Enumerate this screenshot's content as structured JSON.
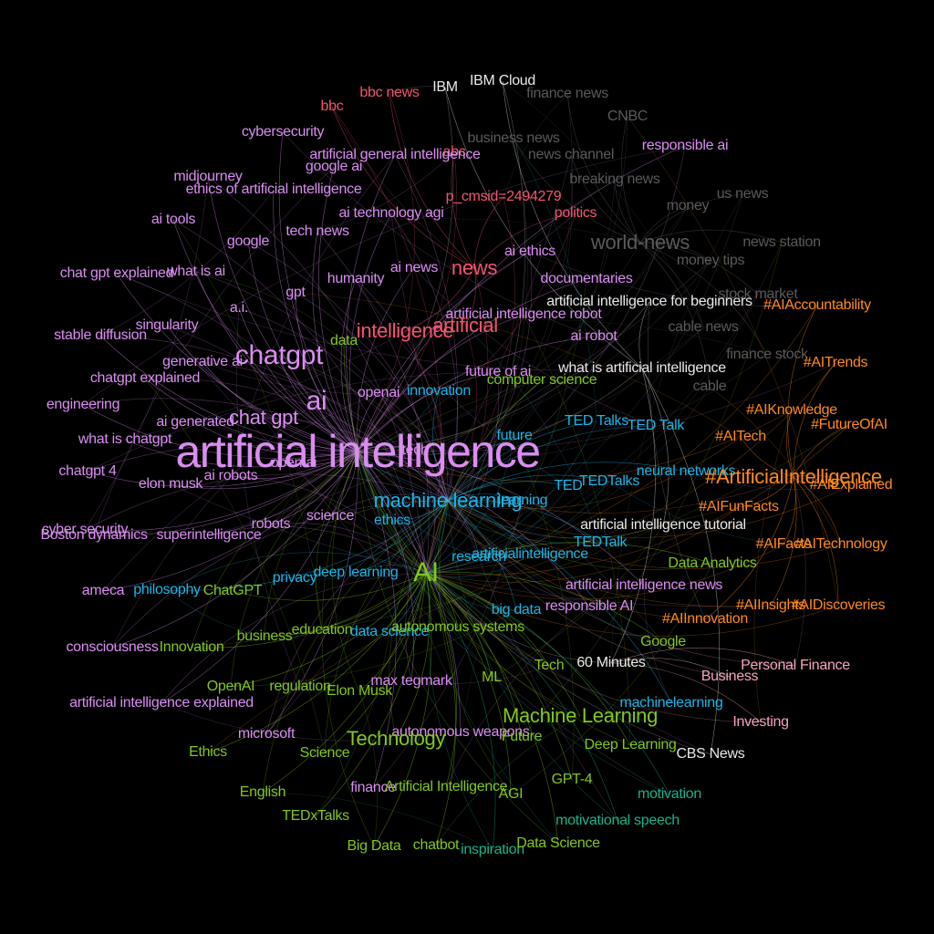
{
  "colors": {
    "background": "#000000",
    "violet": "#d98ef0",
    "red": "#f2566f",
    "cyan": "#19b6e8",
    "green": "#82c71e",
    "orange": "#ff8a1c",
    "gray": "#5a5a5a",
    "white": "#e8e8e8",
    "teal": "#17b38e",
    "pink": "#f3a5ba"
  },
  "nodes": [
    {
      "label": "IBM",
      "color": "white",
      "size": "s"
    },
    {
      "label": "IBM Cloud",
      "color": "white",
      "size": "s"
    },
    {
      "label": "finance news",
      "color": "gray",
      "size": "s"
    },
    {
      "label": "bbc news",
      "color": "red",
      "size": "s"
    },
    {
      "label": "bbc",
      "color": "red",
      "size": "s"
    },
    {
      "label": "CNBC",
      "color": "gray",
      "size": "s"
    },
    {
      "label": "cybersecurity",
      "color": "violet",
      "size": "s"
    },
    {
      "label": "business news",
      "color": "gray",
      "size": "s"
    },
    {
      "label": "responsible ai",
      "color": "violet",
      "size": "s"
    },
    {
      "label": "abc",
      "color": "red",
      "size": "s"
    },
    {
      "label": "artificial general intelligence",
      "color": "violet",
      "size": "s"
    },
    {
      "label": "news channel",
      "color": "gray",
      "size": "s"
    },
    {
      "label": "google ai",
      "color": "violet",
      "size": "s"
    },
    {
      "label": "midjourney",
      "color": "violet",
      "size": "s"
    },
    {
      "label": "breaking news",
      "color": "gray",
      "size": "s"
    },
    {
      "label": "ethics of artificial intelligence",
      "color": "violet",
      "size": "s"
    },
    {
      "label": "us news",
      "color": "gray",
      "size": "s"
    },
    {
      "label": "p_cmsid=2494279",
      "color": "red",
      "size": "s"
    },
    {
      "label": "money",
      "color": "gray",
      "size": "s"
    },
    {
      "label": "ai tools",
      "color": "violet",
      "size": "s"
    },
    {
      "label": "ai technology agi",
      "color": "violet",
      "size": "s"
    },
    {
      "label": "politics",
      "color": "red",
      "size": "s"
    },
    {
      "label": "tech news",
      "color": "violet",
      "size": "s"
    },
    {
      "label": "google",
      "color": "violet",
      "size": "s"
    },
    {
      "label": "world-news",
      "color": "gray",
      "size": "m"
    },
    {
      "label": "news station",
      "color": "gray",
      "size": "s"
    },
    {
      "label": "ai ethics",
      "color": "violet",
      "size": "s"
    },
    {
      "label": "money tips",
      "color": "gray",
      "size": "s"
    },
    {
      "label": "chat gpt explained",
      "color": "violet",
      "size": "s"
    },
    {
      "label": "what is ai",
      "color": "violet",
      "size": "s"
    },
    {
      "label": "ai news",
      "color": "violet",
      "size": "s"
    },
    {
      "label": "news",
      "color": "red",
      "size": "m"
    },
    {
      "label": "humanity",
      "color": "violet",
      "size": "s"
    },
    {
      "label": "documentaries",
      "color": "violet",
      "size": "s"
    },
    {
      "label": "stock market",
      "color": "gray",
      "size": "s"
    },
    {
      "label": "gpt",
      "color": "violet",
      "size": "s"
    },
    {
      "label": "artificial intelligence for beginners",
      "color": "white",
      "size": "s"
    },
    {
      "label": "#AIAccountability",
      "color": "orange",
      "size": "s"
    },
    {
      "label": "a.i.",
      "color": "violet",
      "size": "s"
    },
    {
      "label": "artificial intelligence robot",
      "color": "violet",
      "size": "s"
    },
    {
      "label": "singularity",
      "color": "violet",
      "size": "s"
    },
    {
      "label": "artificial",
      "color": "red",
      "size": "m"
    },
    {
      "label": "cable news",
      "color": "gray",
      "size": "s"
    },
    {
      "label": "intelligence",
      "color": "red",
      "size": "m"
    },
    {
      "label": "stable diffusion",
      "color": "violet",
      "size": "s"
    },
    {
      "label": "ai robot",
      "color": "violet",
      "size": "s"
    },
    {
      "label": "data",
      "color": "green",
      "size": "s"
    },
    {
      "label": "chatgpt",
      "color": "violet",
      "size": "l"
    },
    {
      "label": "finance stock",
      "color": "gray",
      "size": "s"
    },
    {
      "label": "#AITrends",
      "color": "orange",
      "size": "s"
    },
    {
      "label": "generative ai",
      "color": "violet",
      "size": "s"
    },
    {
      "label": "what is artificial intelligence",
      "color": "white",
      "size": "s"
    },
    {
      "label": "future of ai",
      "color": "violet",
      "size": "s"
    },
    {
      "label": "chatgpt explained",
      "color": "violet",
      "size": "s"
    },
    {
      "label": "computer science",
      "color": "green",
      "size": "s"
    },
    {
      "label": "cable",
      "color": "gray",
      "size": "s"
    },
    {
      "label": "openai",
      "color": "violet",
      "size": "s"
    },
    {
      "label": "innovation",
      "color": "cyan",
      "size": "s"
    },
    {
      "label": "ai",
      "color": "violet",
      "size": "l"
    },
    {
      "label": "engineering",
      "color": "violet",
      "size": "s"
    },
    {
      "label": "#AIKnowledge",
      "color": "orange",
      "size": "s"
    },
    {
      "label": "#FutureOfAI",
      "color": "orange",
      "size": "s"
    },
    {
      "label": "chat gpt",
      "color": "violet",
      "size": "m"
    },
    {
      "label": "ai generated",
      "color": "violet",
      "size": "s"
    },
    {
      "label": "TED Talks",
      "color": "cyan",
      "size": "s"
    },
    {
      "label": "TED Talk",
      "color": "cyan",
      "size": "s"
    },
    {
      "label": "what is chatgpt",
      "color": "violet",
      "size": "s"
    },
    {
      "label": "future",
      "color": "cyan",
      "size": "s"
    },
    {
      "label": "#AITech",
      "color": "orange",
      "size": "s"
    },
    {
      "label": "artificial intelligence",
      "color": "violet",
      "size": "xl"
    },
    {
      "label": "tech",
      "color": "violet",
      "size": "s"
    },
    {
      "label": "chatgpt 4",
      "color": "violet",
      "size": "s"
    },
    {
      "label": "open ai",
      "color": "violet",
      "size": "s"
    },
    {
      "label": "ai robots",
      "color": "violet",
      "size": "s"
    },
    {
      "label": "neural networks",
      "color": "cyan",
      "size": "s"
    },
    {
      "label": "#ArtificialIntelligence",
      "color": "orange",
      "size": "m"
    },
    {
      "label": "TEDTalks",
      "color": "cyan",
      "size": "s"
    },
    {
      "label": "#AIExplained",
      "color": "orange",
      "size": "s"
    },
    {
      "label": "elon musk",
      "color": "violet",
      "size": "s"
    },
    {
      "label": "TED",
      "color": "cyan",
      "size": "s"
    },
    {
      "label": "machine learning",
      "color": "cyan",
      "size": "m"
    },
    {
      "label": "learning",
      "color": "cyan",
      "size": "s"
    },
    {
      "label": "#AIFunFacts",
      "color": "orange",
      "size": "s"
    },
    {
      "label": "science",
      "color": "violet",
      "size": "s"
    },
    {
      "label": "ethics",
      "color": "cyan",
      "size": "s"
    },
    {
      "label": "robots",
      "color": "violet",
      "size": "s"
    },
    {
      "label": "cyber security",
      "color": "violet",
      "size": "s"
    },
    {
      "label": "Boston dynamics",
      "color": "violet",
      "size": "s"
    },
    {
      "label": "superintelligence",
      "color": "violet",
      "size": "s"
    },
    {
      "label": "artificial intelligence tutorial",
      "color": "white",
      "size": "s"
    },
    {
      "label": "TEDTalk",
      "color": "cyan",
      "size": "s"
    },
    {
      "label": "#AIFacts",
      "color": "orange",
      "size": "s"
    },
    {
      "label": "#AITechnology",
      "color": "orange",
      "size": "s"
    },
    {
      "label": "research",
      "color": "cyan",
      "size": "s"
    },
    {
      "label": "artificialintelligence",
      "color": "cyan",
      "size": "s"
    },
    {
      "label": "Data Analytics",
      "color": "green",
      "size": "s"
    },
    {
      "label": "AI",
      "color": "green",
      "size": "l"
    },
    {
      "label": "deep learning",
      "color": "cyan",
      "size": "s"
    },
    {
      "label": "privacy",
      "color": "cyan",
      "size": "s"
    },
    {
      "label": "ameca",
      "color": "violet",
      "size": "s"
    },
    {
      "label": "philosophy",
      "color": "cyan",
      "size": "s"
    },
    {
      "label": "ChatGPT",
      "color": "green",
      "size": "s"
    },
    {
      "label": "artificial intelligence news",
      "color": "violet",
      "size": "s"
    },
    {
      "label": "big data",
      "color": "cyan",
      "size": "s"
    },
    {
      "label": "responsible AI",
      "color": "violet",
      "size": "s"
    },
    {
      "label": "#AIInsights",
      "color": "orange",
      "size": "s"
    },
    {
      "label": "#AIDiscoveries",
      "color": "orange",
      "size": "s"
    },
    {
      "label": "#AIInnovation",
      "color": "orange",
      "size": "s"
    },
    {
      "label": "education",
      "color": "green",
      "size": "s"
    },
    {
      "label": "data science",
      "color": "cyan",
      "size": "s"
    },
    {
      "label": "autonomous systems",
      "color": "green",
      "size": "s"
    },
    {
      "label": "business",
      "color": "green",
      "size": "s"
    },
    {
      "label": "Google",
      "color": "green",
      "size": "s"
    },
    {
      "label": "consciousness",
      "color": "violet",
      "size": "s"
    },
    {
      "label": "Innovation",
      "color": "green",
      "size": "s"
    },
    {
      "label": "60 Minutes",
      "color": "white",
      "size": "s"
    },
    {
      "label": "Personal Finance",
      "color": "pink",
      "size": "s"
    },
    {
      "label": "Tech",
      "color": "green",
      "size": "s"
    },
    {
      "label": "ML",
      "color": "green",
      "size": "s"
    },
    {
      "label": "Business",
      "color": "pink",
      "size": "s"
    },
    {
      "label": "OpenAI",
      "color": "green",
      "size": "s"
    },
    {
      "label": "regulation",
      "color": "green",
      "size": "s"
    },
    {
      "label": "max tegmark",
      "color": "violet",
      "size": "s"
    },
    {
      "label": "Elon Musk",
      "color": "green",
      "size": "s"
    },
    {
      "label": "artificial intelligence explained",
      "color": "violet",
      "size": "s"
    },
    {
      "label": "machinelearning",
      "color": "cyan",
      "size": "s"
    },
    {
      "label": "Machine Learning",
      "color": "green",
      "size": "m"
    },
    {
      "label": "Investing",
      "color": "pink",
      "size": "s"
    },
    {
      "label": "microsoft",
      "color": "violet",
      "size": "s"
    },
    {
      "label": "autonomous weapons",
      "color": "violet",
      "size": "s"
    },
    {
      "label": "Future",
      "color": "green",
      "size": "s"
    },
    {
      "label": "Technology",
      "color": "green",
      "size": "m"
    },
    {
      "label": "Deep Learning",
      "color": "green",
      "size": "s"
    },
    {
      "label": "Ethics",
      "color": "green",
      "size": "s"
    },
    {
      "label": "Science",
      "color": "green",
      "size": "s"
    },
    {
      "label": "CBS News",
      "color": "white",
      "size": "s"
    },
    {
      "label": "GPT-4",
      "color": "green",
      "size": "s"
    },
    {
      "label": "English",
      "color": "green",
      "size": "s"
    },
    {
      "label": "finance",
      "color": "violet",
      "size": "s"
    },
    {
      "label": "Artificial Intelligence",
      "color": "green",
      "size": "s"
    },
    {
      "label": "AGI",
      "color": "green",
      "size": "s"
    },
    {
      "label": "motivation",
      "color": "teal",
      "size": "s"
    },
    {
      "label": "TEDxTalks",
      "color": "green",
      "size": "s"
    },
    {
      "label": "motivational speech",
      "color": "teal",
      "size": "s"
    },
    {
      "label": "Big Data",
      "color": "green",
      "size": "s"
    },
    {
      "label": "chatbot",
      "color": "green",
      "size": "s"
    },
    {
      "label": "inspiration",
      "color": "teal",
      "size": "s"
    },
    {
      "label": "Data Science",
      "color": "green",
      "size": "s"
    }
  ]
}
